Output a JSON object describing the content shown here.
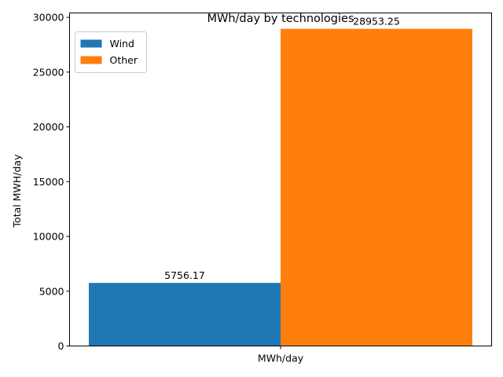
{
  "chart_data": {
    "type": "bar",
    "title": "MWh/day by technologies",
    "xlabel": "",
    "ylabel": "Total MWH/day",
    "categories": [
      "MWh/day"
    ],
    "series": [
      {
        "name": "Wind",
        "values": [
          5756.17
        ],
        "color": "#1f77b4",
        "label": "5756.17"
      },
      {
        "name": "Other",
        "values": [
          28953.25
        ],
        "color": "#ff7f0e",
        "label": "28953.25"
      }
    ],
    "ylim": [
      0,
      30400
    ],
    "yticks": [
      0,
      5000,
      10000,
      15000,
      20000,
      25000,
      30000
    ],
    "ytick_labels": [
      "0",
      "5000",
      "10000",
      "15000",
      "20000",
      "25000",
      "30000"
    ],
    "grid": false,
    "legend_position": "top-left"
  }
}
